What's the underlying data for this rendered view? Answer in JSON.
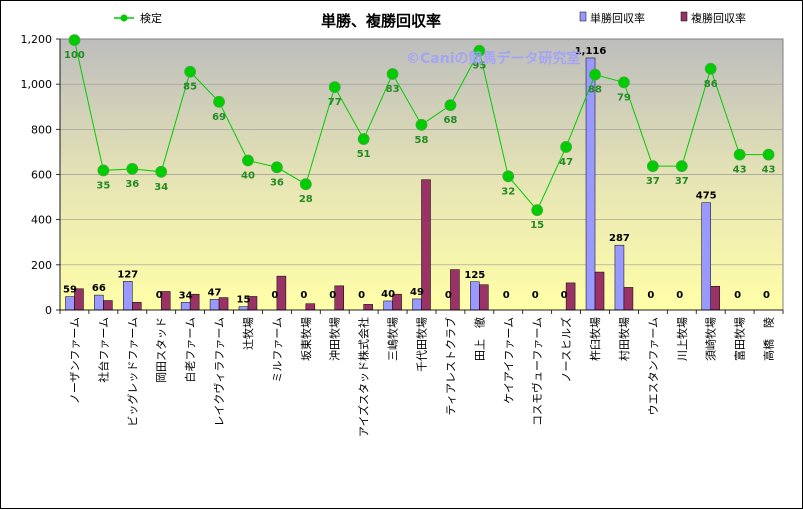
{
  "chart_data": {
    "type": "bar",
    "title": "単勝、複勝回収率",
    "watermark": "©Caniの競馬データ研究室",
    "ylim": [
      0,
      1200
    ],
    "yticks": [
      0,
      200,
      400,
      600,
      800,
      1000,
      1200
    ],
    "ytick_labels": [
      "0",
      "200",
      "400",
      "600",
      "800",
      "1,000",
      "1,200"
    ],
    "categories": [
      "ノーザンファーム",
      "社台ファーム",
      "ビッグレッドファーム",
      "岡田スタッド",
      "白老ファーム",
      "レイクヴィラファーム",
      "辻牧場",
      "ミルファーム",
      "坂東牧場",
      "沖田牧場",
      "アイズスタッド株式会社",
      "三嶋牧場",
      "千代田牧場",
      "ティアレストクラブ",
      "田上　徹",
      "ケイアイファーム",
      "コスモヴューファーム",
      "ノースヒルズ",
      "杵臼牧場",
      "村田牧場",
      "ウエスタンファーム",
      "川上牧場",
      "須崎牧場",
      "富田牧場",
      "高橋　陵"
    ],
    "series": [
      {
        "name": "単勝回収率",
        "color": "#9999ff",
        "values": [
          59,
          66,
          127,
          0,
          34,
          47,
          15,
          0,
          0,
          0,
          0,
          40,
          49,
          0,
          125,
          0,
          0,
          0,
          1116,
          287,
          0,
          0,
          475,
          0,
          0
        ],
        "labels": [
          "59",
          "66",
          "127",
          "0",
          "34",
          "47",
          "15",
          "0",
          "0",
          "0",
          "0",
          "40",
          "49",
          "0",
          "125",
          "0",
          "0",
          "0",
          "1,116",
          "287",
          "0",
          "0",
          "475",
          "0",
          "0"
        ]
      },
      {
        "name": "複勝回収率",
        "color": "#993366",
        "values": [
          94,
          42,
          34,
          82,
          70,
          55,
          60,
          150,
          28,
          107,
          25,
          70,
          577,
          179,
          112,
          0,
          0,
          120,
          168,
          100,
          0,
          0,
          105,
          0,
          0
        ]
      },
      {
        "name": "検定",
        "type": "line",
        "color": "#00cc00",
        "values": [
          1195,
          618,
          625,
          612,
          1055,
          922,
          662,
          632,
          557,
          987,
          757,
          1045,
          820,
          907,
          1148,
          592,
          442,
          722,
          1042,
          1008,
          637,
          637,
          1068,
          688,
          688
        ],
        "labels": [
          "100",
          "35",
          "36",
          "34",
          "85",
          "69",
          "40",
          "36",
          "28",
          "77",
          "51",
          "83",
          "58",
          "68",
          "95",
          "32",
          "15",
          "47",
          "88",
          "79",
          "37",
          "37",
          "86",
          "43",
          "43"
        ]
      }
    ]
  }
}
